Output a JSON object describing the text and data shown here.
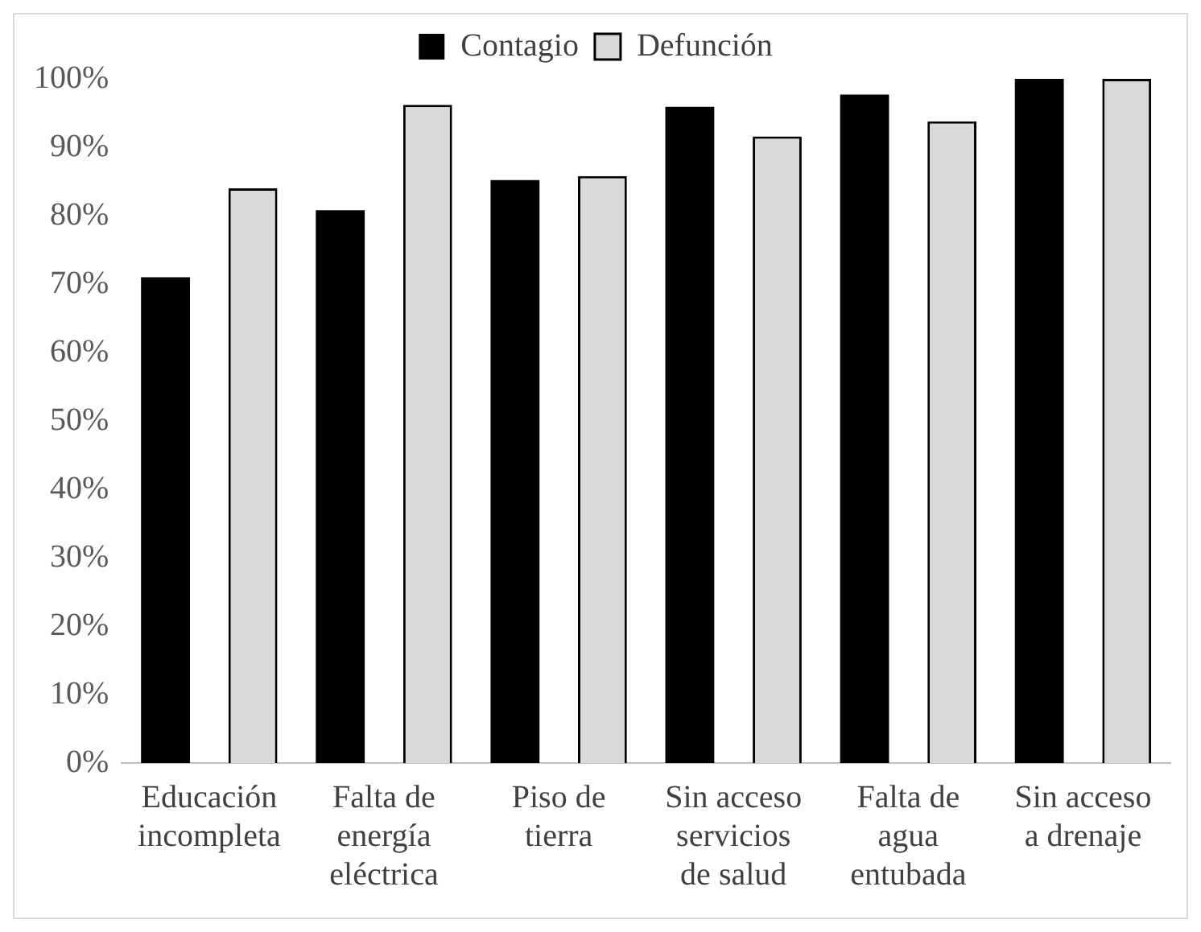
{
  "chart_data": {
    "type": "bar",
    "categories": [
      "Educación\nincompleta",
      "Falta de\nenergía\neléctrica",
      "Piso de\ntierra",
      "Sin acceso\nservicios\nde salud",
      "Falta de\nagua\nentubada",
      "Sin acceso\na drenaje"
    ],
    "series": [
      {
        "name": "Contagio",
        "color": "#000000",
        "values": [
          71,
          80.8,
          85.2,
          95.9,
          97.7,
          100
        ]
      },
      {
        "name": "Defunción",
        "color": "#d9d9d9",
        "values": [
          84,
          96.2,
          85.8,
          91.6,
          93.8,
          100
        ]
      }
    ],
    "ylim": [
      0,
      100
    ],
    "yticks": [
      {
        "value": 0,
        "label": "0%"
      },
      {
        "value": 10,
        "label": "10%"
      },
      {
        "value": 20,
        "label": "20%"
      },
      {
        "value": 30,
        "label": "30%"
      },
      {
        "value": 40,
        "label": "40%"
      },
      {
        "value": 50,
        "label": "50%"
      },
      {
        "value": 60,
        "label": "60%"
      },
      {
        "value": 70,
        "label": "70%"
      },
      {
        "value": 80,
        "label": "80%"
      },
      {
        "value": 90,
        "label": "90%"
      },
      {
        "value": 100,
        "label": "100%"
      }
    ],
    "grid": false,
    "legend": "top"
  }
}
